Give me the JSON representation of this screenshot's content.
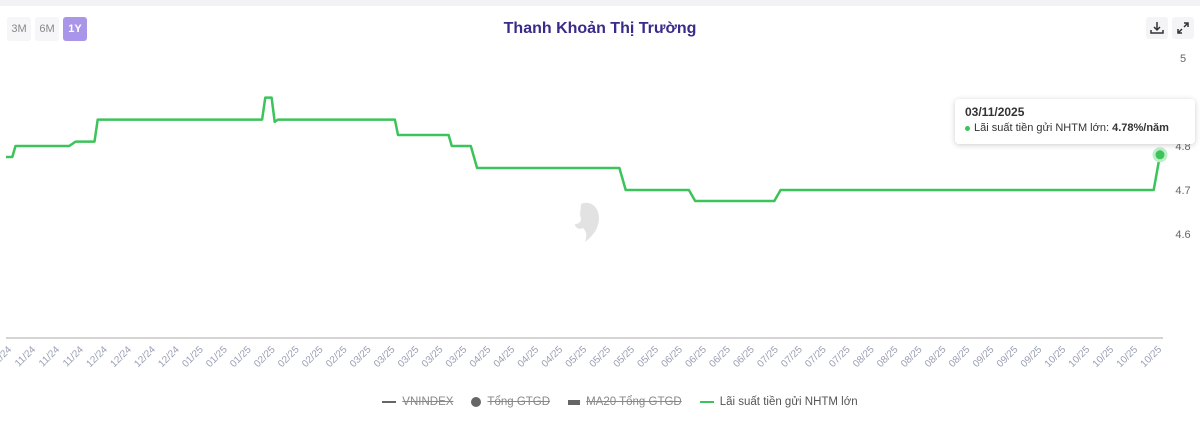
{
  "header": {
    "title": "Thanh Khoản Thị Trường",
    "ranges": [
      "3M",
      "6M",
      "1Y"
    ],
    "active_range": "1Y"
  },
  "tools": {
    "download": "download-icon",
    "fullscreen": "expand-icon"
  },
  "watermark": "SSTOCK",
  "tooltip": {
    "date": "03/11/2025",
    "series": "Lãi suất tiền gửi NHTM lớn: ",
    "value": "4.78%/năm"
  },
  "legend": [
    {
      "label": "VNINDEX",
      "symbol": "line",
      "hidden": true
    },
    {
      "label": "Tổng GTGD",
      "symbol": "circle",
      "hidden": true
    },
    {
      "label": "MA20 Tổng GTGD",
      "symbol": "rect",
      "hidden": true
    },
    {
      "label": "Lãi suất tiền gửi NHTM lớn",
      "symbol": "line",
      "hidden": false,
      "color": "#3cc35a"
    }
  ],
  "chart_data": {
    "type": "line",
    "title": "Thanh Khoản Thị Trường",
    "x_domain_days": [
      0,
      365
    ],
    "x_start": "03/11/2024",
    "x_end": "03/11/2025",
    "ylim": [
      4.36,
      5.0
    ],
    "yticks": [
      "5",
      "4.8",
      "4.7",
      "4.6"
    ],
    "ytick_values": [
      5,
      4.8,
      4.7,
      4.6
    ],
    "xticks": [
      "11/24",
      "11/24",
      "11/24",
      "11/24",
      "12/24",
      "12/24",
      "12/24",
      "12/24",
      "01/25",
      "01/25",
      "01/25",
      "02/25",
      "02/25",
      "02/25",
      "02/25",
      "03/25",
      "03/25",
      "03/25",
      "03/25",
      "03/25",
      "04/25",
      "04/25",
      "04/25",
      "04/25",
      "05/25",
      "05/25",
      "05/25",
      "05/25",
      "06/25",
      "06/25",
      "06/25",
      "06/25",
      "07/25",
      "07/25",
      "07/25",
      "07/25",
      "08/25",
      "08/25",
      "08/25",
      "08/25",
      "08/25",
      "09/25",
      "09/25",
      "09/25",
      "10/25",
      "10/25",
      "10/25",
      "10/25",
      "10/25"
    ],
    "series": [
      {
        "name": "Lãi suất tiền gửi NHTM lớn",
        "color": "#3cc35a",
        "unit": "%/năm",
        "points": [
          [
            0,
            4.775
          ],
          [
            2,
            4.775
          ],
          [
            3,
            4.8
          ],
          [
            20,
            4.8
          ],
          [
            22,
            4.81
          ],
          [
            28,
            4.81
          ],
          [
            29,
            4.86
          ],
          [
            81,
            4.86
          ],
          [
            82,
            4.91
          ],
          [
            84,
            4.91
          ],
          [
            85,
            4.855
          ],
          [
            86,
            4.86
          ],
          [
            123,
            4.86
          ],
          [
            124,
            4.825
          ],
          [
            140,
            4.825
          ],
          [
            141,
            4.8
          ],
          [
            147,
            4.8
          ],
          [
            149,
            4.75
          ],
          [
            194,
            4.75
          ],
          [
            196,
            4.7
          ],
          [
            216,
            4.7
          ],
          [
            218,
            4.675
          ],
          [
            243,
            4.675
          ],
          [
            245,
            4.7
          ],
          [
            363,
            4.7
          ],
          [
            365,
            4.78
          ]
        ]
      }
    ]
  }
}
